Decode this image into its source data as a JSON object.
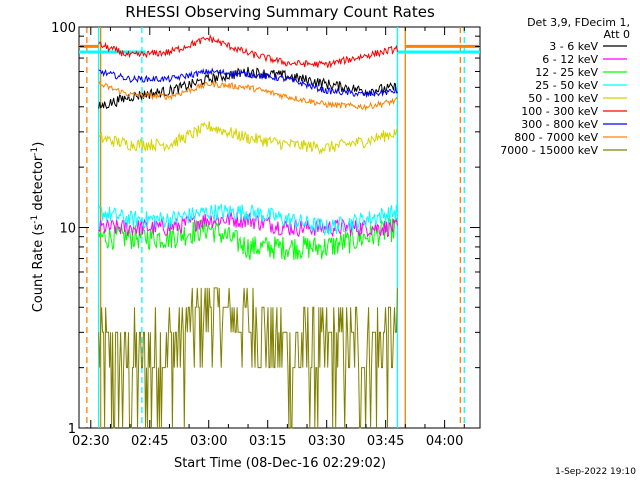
{
  "chart_data": {
    "type": "line",
    "title": "RHESSI Observing Summary Count Rates",
    "xlabel": "Start Time (08-Dec-16 02:29:02)",
    "ylabel_main": "Count Rate (s",
    "ylabel_exp": "-1",
    "ylabel_tail": " detector",
    "ylabel_exp2": "-1",
    "ylabel_close": ")",
    "y_scale": "log",
    "ylim": [
      1,
      100
    ],
    "xlim": [
      "02:27",
      "04:09"
    ],
    "x_ticks": [
      "02:30",
      "02:45",
      "03:00",
      "03:15",
      "03:30",
      "03:45",
      "04:00"
    ],
    "y_ticks": [
      "1",
      "10",
      "100"
    ],
    "legend_header": [
      "Det 3,9, FDecim 1,",
      "Att 0"
    ],
    "legend_position": "right",
    "footer": "1-Sep-2022 19:10",
    "data_window": [
      "02:32",
      "03:48"
    ],
    "markers": [
      {
        "time": "02:29",
        "color": "#ff8000",
        "style": "dashed"
      },
      {
        "time": "02:32",
        "color": "#00ffff",
        "style": "solid"
      },
      {
        "time": "02:32.5",
        "color": "#ff8000",
        "style": "solid"
      },
      {
        "time": "02:43",
        "color": "#00ffff",
        "style": "dashed"
      },
      {
        "time": "03:48",
        "color": "#00ffff",
        "style": "solid"
      },
      {
        "time": "03:50",
        "color": "#ff8000",
        "style": "solid"
      },
      {
        "time": "04:04",
        "color": "#ff8000",
        "style": "dashed"
      },
      {
        "time": "04:05",
        "color": "#00ffff",
        "style": "dashed"
      }
    ],
    "series": [
      {
        "name": "3 - 6 keV",
        "color": "#000000",
        "x": [
          "02:32",
          "02:40",
          "02:50",
          "03:00",
          "03:10",
          "03:20",
          "03:30",
          "03:40",
          "03:48"
        ],
        "values": [
          40,
          45,
          48,
          55,
          60,
          57,
          52,
          48,
          50
        ]
      },
      {
        "name": "6 - 12 keV",
        "color": "#ff00ff",
        "x": [
          "02:32",
          "02:40",
          "02:50",
          "03:00",
          "03:10",
          "03:20",
          "03:30",
          "03:40",
          "03:48"
        ],
        "values": [
          10,
          10,
          10,
          11,
          11,
          10,
          10,
          10,
          10
        ]
      },
      {
        "name": "12 - 25 keV",
        "color": "#00ff00",
        "x": [
          "02:32",
          "02:40",
          "02:50",
          "03:00",
          "03:10",
          "03:20",
          "03:30",
          "03:40",
          "03:48"
        ],
        "values": [
          9,
          9,
          9,
          10,
          8,
          8,
          8,
          9,
          10
        ]
      },
      {
        "name": "25 - 50 keV",
        "color": "#00ffff",
        "x": [
          "02:32",
          "02:40",
          "02:50",
          "03:00",
          "03:10",
          "03:20",
          "03:30",
          "03:40",
          "03:48"
        ],
        "values": [
          12,
          11,
          11,
          12,
          12,
          11,
          10,
          11,
          12
        ]
      },
      {
        "name": "50 - 100 keV",
        "color": "#d4d400",
        "x": [
          "02:32",
          "02:40",
          "02:50",
          "03:00",
          "03:10",
          "03:20",
          "03:30",
          "03:40",
          "03:48"
        ],
        "values": [
          28,
          26,
          26,
          32,
          28,
          26,
          25,
          27,
          30
        ]
      },
      {
        "name": "100 - 300 keV",
        "color": "#ff0000",
        "x": [
          "02:32",
          "02:40",
          "02:50",
          "03:00",
          "03:10",
          "03:20",
          "03:30",
          "03:40",
          "03:48"
        ],
        "values": [
          82,
          72,
          75,
          88,
          74,
          66,
          65,
          72,
          78
        ]
      },
      {
        "name": "300 - 800 keV",
        "color": "#0000ff",
        "x": [
          "02:32",
          "02:40",
          "02:50",
          "03:00",
          "03:10",
          "03:20",
          "03:30",
          "03:40",
          "03:48"
        ],
        "values": [
          60,
          55,
          55,
          60,
          58,
          55,
          48,
          46,
          48
        ]
      },
      {
        "name": "800 - 7000 keV",
        "color": "#ff8000",
        "x": [
          "02:32",
          "02:40",
          "02:50",
          "03:00",
          "03:10",
          "03:20",
          "03:30",
          "03:40",
          "03:48"
        ],
        "values": [
          52,
          46,
          45,
          52,
          50,
          45,
          41,
          40,
          43
        ]
      },
      {
        "name": "7000 - 15000 keV",
        "color": "#808000",
        "x": [
          "02:32",
          "02:40",
          "02:50",
          "03:00",
          "03:10",
          "03:20",
          "03:30",
          "03:40",
          "03:48"
        ],
        "values": [
          2.5,
          2.0,
          2.5,
          4.0,
          3.5,
          2.5,
          2.5,
          2.5,
          3.0
        ]
      }
    ]
  }
}
